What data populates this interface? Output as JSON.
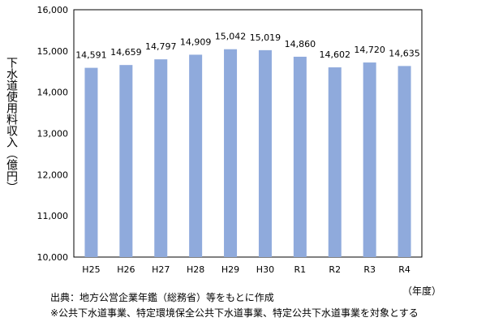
{
  "chart_data": {
    "type": "bar",
    "categories": [
      "H25",
      "H26",
      "H27",
      "H28",
      "H29",
      "H30",
      "R1",
      "R2",
      "R3",
      "R4"
    ],
    "values": [
      14591,
      14659,
      14797,
      14909,
      15042,
      15019,
      14860,
      14602,
      14720,
      14635
    ],
    "value_labels": [
      "14,591",
      "14,659",
      "14,797",
      "14,909",
      "15,042",
      "15,019",
      "14,860",
      "14,602",
      "14,720",
      "14,635"
    ],
    "ylabel": "下水道使用料収入（億円）",
    "xlabel": "（年度）",
    "ylim": [
      10000,
      16000
    ],
    "yticks": [
      10000,
      11000,
      12000,
      13000,
      14000,
      15000,
      16000
    ],
    "ytick_labels": [
      "10,000",
      "11,000",
      "12,000",
      "13,000",
      "14,000",
      "15,000",
      "16,000"
    ],
    "bar_color": "#8faadc",
    "grid": false
  },
  "notes": {
    "source": "出典：地方公営企業年鑑（総務省）等をもとに作成",
    "scope": "※公共下水道事業、特定環境保全公共下水道事業、特定公共下水道事業を対象とする"
  }
}
